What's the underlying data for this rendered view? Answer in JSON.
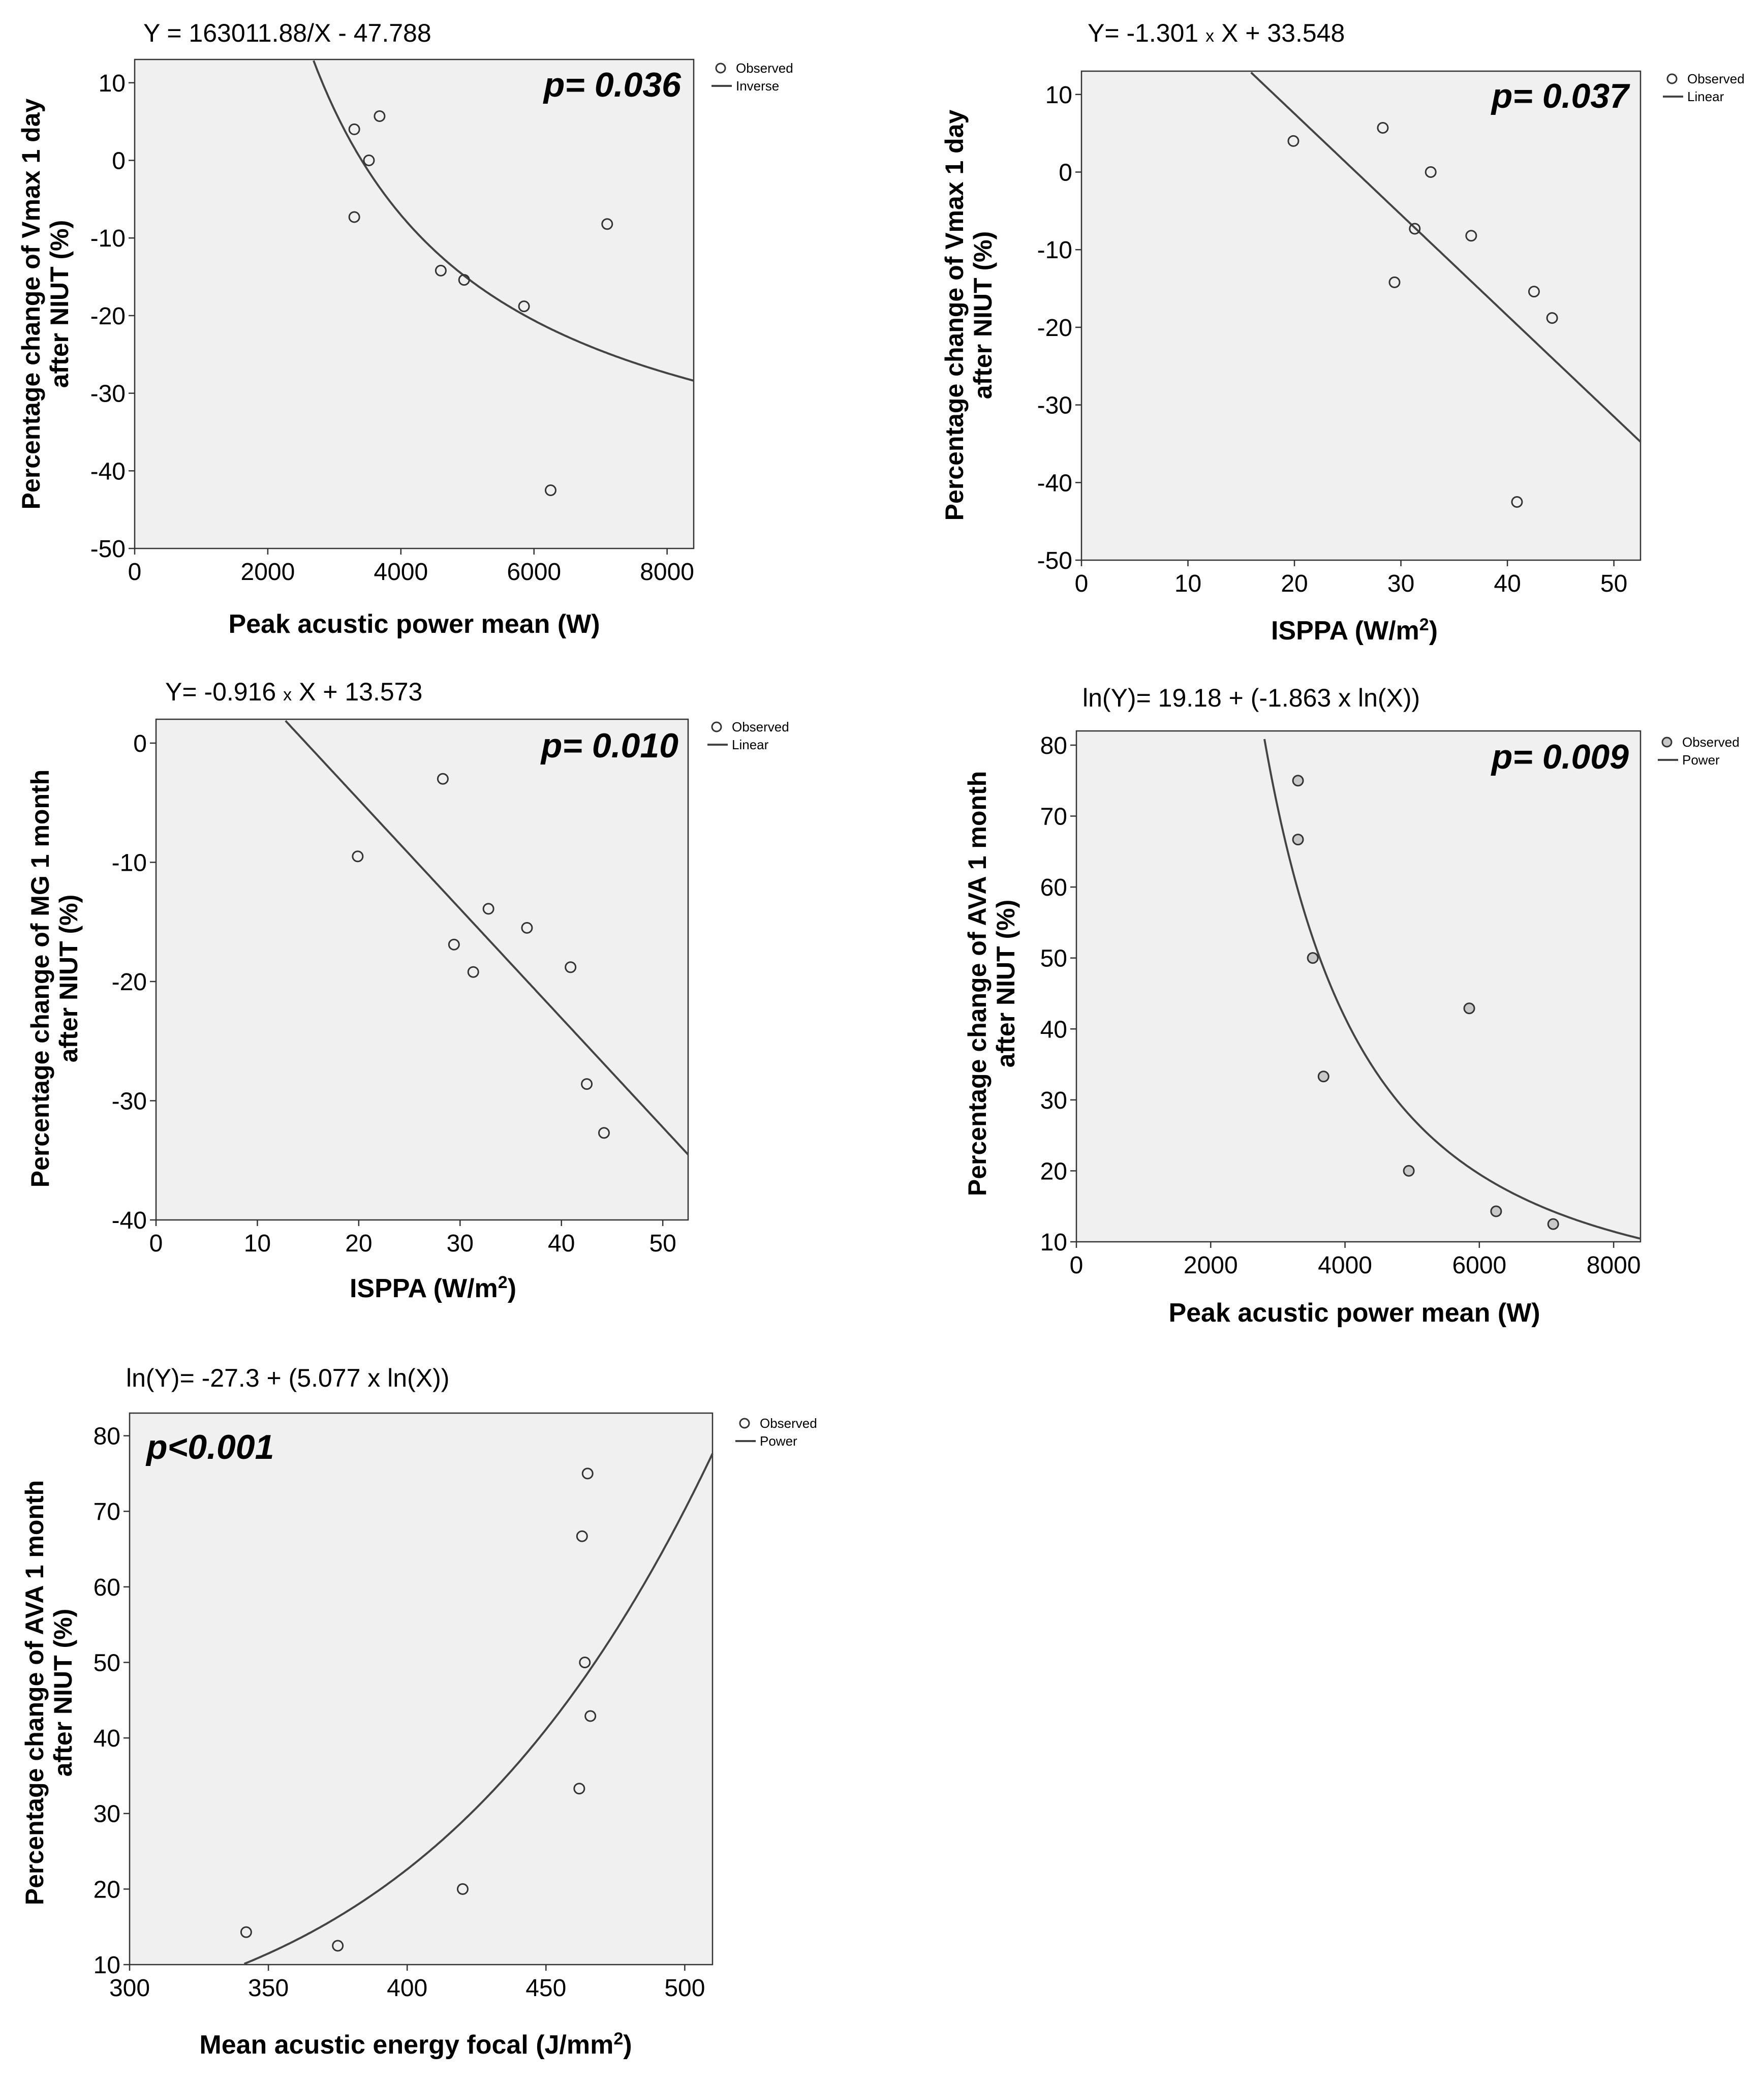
{
  "chart_data": [
    {
      "type": "scatter",
      "title": "Y = 163011.88/X - 47.788",
      "p_value": "p= 0.036",
      "xlabel": "Peak acustic power mean (W)",
      "ylabel_line1": "Percentage change of Vmax 1 day",
      "ylabel_line2": "after NIUT (%)",
      "xlim": [
        0,
        8400
      ],
      "ylim": [
        -50,
        13
      ],
      "xticks": [
        0,
        2000,
        4000,
        6000,
        8000
      ],
      "yticks": [
        -50,
        -40,
        -30,
        -20,
        -10,
        0,
        10
      ],
      "legend": [
        "Observed",
        "Inverse"
      ],
      "legend_position": "outside-top-right",
      "fit": {
        "model": "inverse",
        "a": 163011.88,
        "b": -47.788
      },
      "points": [
        [
          3300,
          4
        ],
        [
          3300,
          -7.3
        ],
        [
          3520,
          0
        ],
        [
          3680,
          5.7
        ],
        [
          4600,
          -14.2
        ],
        [
          4950,
          -15.4
        ],
        [
          5850,
          -18.8
        ],
        [
          6250,
          -42.5
        ],
        [
          7100,
          -8.2
        ]
      ]
    },
    {
      "type": "scatter",
      "title_prefix": "Y= -1.301 ",
      "title_x": "x",
      "title_suffix": " X + 33.548",
      "p_value": "p= 0.037",
      "xlabel": "ISPPA (W/m",
      "xlabel_sup": "2",
      "xlabel_end": ")",
      "ylabel_line1": "Percentage change of Vmax 1 day",
      "ylabel_line2": "after NIUT (%)",
      "xlim": [
        0,
        52.5
      ],
      "ylim": [
        -50,
        13
      ],
      "xticks": [
        0,
        10,
        20,
        30,
        40,
        50
      ],
      "yticks": [
        -50,
        -40,
        -30,
        -20,
        -10,
        0,
        10
      ],
      "legend": [
        "Observed",
        "Linear"
      ],
      "legend_position": "outside-top-right",
      "fit": {
        "model": "linear",
        "a": -1.301,
        "b": 33.548
      },
      "points": [
        [
          19.9,
          4
        ],
        [
          28.3,
          5.7
        ],
        [
          29.4,
          -14.2
        ],
        [
          31.3,
          -7.3
        ],
        [
          32.8,
          0
        ],
        [
          36.6,
          -8.2
        ],
        [
          40.9,
          -42.5
        ],
        [
          42.5,
          -15.4
        ],
        [
          44.2,
          -18.8
        ]
      ]
    },
    {
      "type": "scatter",
      "title_prefix": "Y= -0.916 ",
      "title_x": "x",
      "title_suffix": " X + 13.573",
      "p_value": "p= 0.010",
      "xlabel": "ISPPA (W/m",
      "xlabel_sup": "2",
      "xlabel_end": ")",
      "ylabel_line1": "Percentage change of MG 1 month",
      "ylabel_line2": "after NIUT (%)",
      "xlim": [
        0,
        52.5
      ],
      "ylim": [
        -40,
        2
      ],
      "xticks": [
        0,
        10,
        20,
        30,
        40,
        50
      ],
      "yticks": [
        -40,
        -30,
        -20,
        -10,
        0
      ],
      "legend": [
        "Observed",
        "Linear"
      ],
      "legend_position": "outside-top-right",
      "fit": {
        "model": "linear",
        "a": -0.916,
        "b": 13.573
      },
      "points": [
        [
          19.9,
          -9.5
        ],
        [
          28.3,
          -3
        ],
        [
          29.4,
          -16.9
        ],
        [
          31.3,
          -19.2
        ],
        [
          32.8,
          -13.9
        ],
        [
          36.6,
          -15.5
        ],
        [
          40.9,
          -18.8
        ],
        [
          42.5,
          -28.6
        ],
        [
          44.2,
          -32.7
        ]
      ]
    },
    {
      "type": "scatter",
      "title": "ln(Y)= 19.18 + (-1.863 x ln(X))",
      "p_value": "p= 0.009",
      "xlabel": "Peak acustic power mean (W)",
      "ylabel_line1": "Percentage change of AVA 1 month",
      "ylabel_line2": "after NIUT (%)",
      "xlim": [
        0,
        8400
      ],
      "ylim": [
        10,
        82
      ],
      "xticks": [
        0,
        2000,
        4000,
        6000,
        8000
      ],
      "yticks": [
        10,
        20,
        30,
        40,
        50,
        60,
        70,
        80
      ],
      "legend": [
        "Observed",
        "Power"
      ],
      "legend_position": "outside-top-right",
      "fit": {
        "model": "power",
        "a": 19.18,
        "b": -1.863
      },
      "points": [
        [
          3300,
          75
        ],
        [
          3300,
          66.7
        ],
        [
          3520,
          50
        ],
        [
          3680,
          33.3
        ],
        [
          4950,
          20
        ],
        [
          5850,
          42.9
        ],
        [
          6250,
          14.3
        ],
        [
          7100,
          12.5
        ]
      ]
    },
    {
      "type": "scatter",
      "title": "ln(Y)= -27.3 + (5.077 x ln(X))",
      "p_value": "p<0.001",
      "xlabel": "Mean acustic energy focal (J/mm",
      "xlabel_sup": "2",
      "xlabel_end": ")",
      "ylabel_line1": "Percentage change of AVA 1 month",
      "ylabel_line2": "after NIUT (%)",
      "xlim": [
        300,
        510
      ],
      "ylim": [
        10,
        83
      ],
      "xticks": [
        300,
        350,
        400,
        450,
        500
      ],
      "yticks": [
        10,
        20,
        30,
        40,
        50,
        60,
        70,
        80
      ],
      "legend": [
        "Observed",
        "Power"
      ],
      "legend_position": "outside-top-right",
      "fit": {
        "model": "power",
        "a": -27.3,
        "b": 5.077
      },
      "points": [
        [
          342,
          14.3
        ],
        [
          375,
          12.5
        ],
        [
          420,
          20
        ],
        [
          462,
          33.3
        ],
        [
          463,
          66.7
        ],
        [
          464,
          50
        ],
        [
          465,
          75
        ],
        [
          466,
          42.9
        ]
      ]
    }
  ]
}
